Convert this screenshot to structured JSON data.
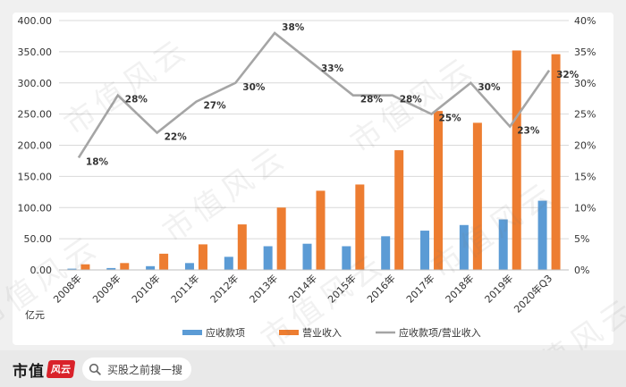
{
  "chart_data": {
    "type": "bar",
    "categories": [
      "2008年",
      "2009年",
      "2010年",
      "2011年",
      "2012年",
      "2013年",
      "2014年",
      "2015年",
      "2016年",
      "2017年",
      "2018年",
      "2019年",
      "2020年Q3"
    ],
    "series": [
      {
        "name": "应收款项",
        "type": "bar",
        "axis": "left",
        "color": "#5b9bd5",
        "values": [
          2,
          3,
          6,
          11,
          21,
          38,
          42,
          38,
          54,
          63,
          72,
          81,
          111
        ]
      },
      {
        "name": "营业收入",
        "type": "bar",
        "axis": "left",
        "color": "#ed7d31",
        "values": [
          9,
          11,
          26,
          41,
          73,
          100,
          127,
          137,
          192,
          255,
          236,
          352,
          346
        ]
      },
      {
        "name": "应收款项/营业收入",
        "type": "line",
        "axis": "right",
        "color": "#a5a5a5",
        "values": [
          18,
          28,
          22,
          27,
          30,
          38,
          33,
          28,
          28,
          25,
          30,
          23,
          32
        ],
        "labels": [
          "18%",
          "28%",
          "22%",
          "27%",
          "30%",
          "38%",
          "33%",
          "28%",
          "28%",
          "25%",
          "30%",
          "23%",
          "32%"
        ]
      }
    ],
    "ylim": [
      0,
      400
    ],
    "y2lim": [
      0,
      40
    ],
    "yticks": [
      "0.00",
      "50.00",
      "100.00",
      "150.00",
      "200.00",
      "250.00",
      "300.00",
      "350.00",
      "400.00"
    ],
    "y2ticks": [
      "0%",
      "5%",
      "10%",
      "15%",
      "20%",
      "25%",
      "30%",
      "35%",
      "40%"
    ],
    "unit_label": "亿元",
    "legend_position": "bottom",
    "grid": true
  },
  "footer": {
    "brand": "市值",
    "seal": "风云",
    "search_text": "买股之前搜一搜"
  },
  "watermark": "市值风云"
}
